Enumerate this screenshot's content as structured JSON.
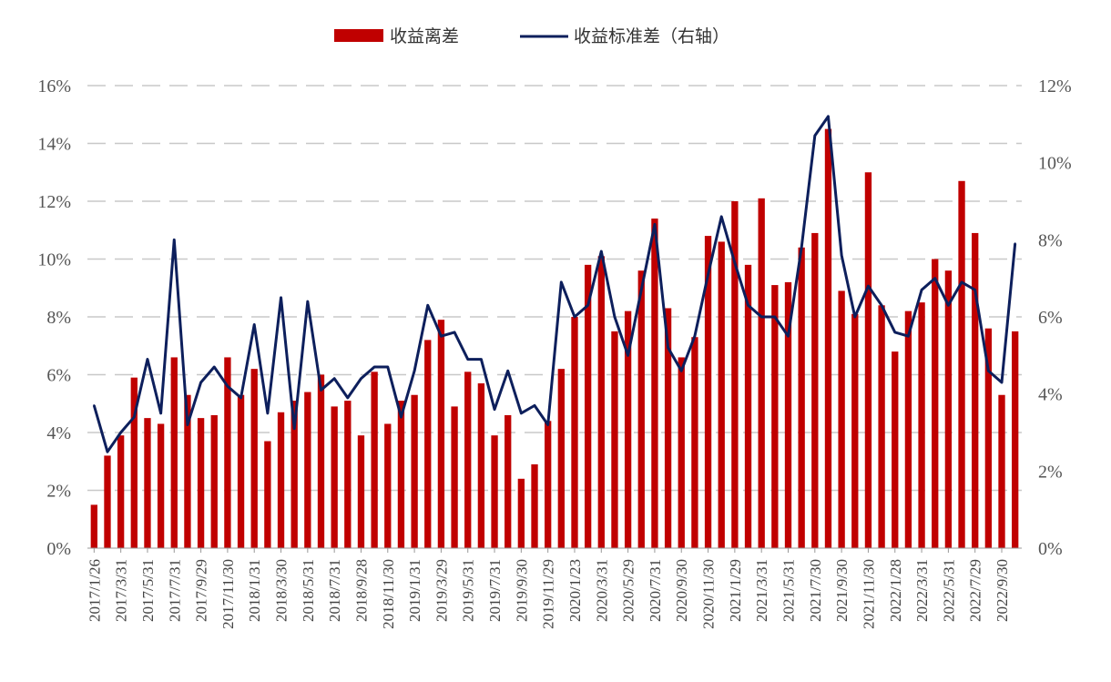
{
  "colors": {
    "bar": "#C00000",
    "line": "#0D1F5C",
    "grid": "#C8C8C8",
    "text": "#555555"
  },
  "chart_data": {
    "type": "bar+line",
    "legend": {
      "position": "top-center",
      "bar_label": "收益离差",
      "line_label": "收益标准差（右轴）"
    },
    "grid": true,
    "y_left": {
      "range": [
        0,
        16
      ],
      "ticks": [
        "0%",
        "2%",
        "4%",
        "6%",
        "8%",
        "10%",
        "12%",
        "14%",
        "16%"
      ]
    },
    "y_right": {
      "range": [
        0,
        12
      ],
      "ticks": [
        "0%",
        "2%",
        "4%",
        "6%",
        "8%",
        "10%",
        "12%"
      ]
    },
    "x_tick_labels": [
      "2017/1/26",
      "2017/3/31",
      "2017/5/31",
      "2017/7/31",
      "2017/9/29",
      "2017/11/30",
      "2018/1/31",
      "2018/3/30",
      "2018/5/31",
      "2018/7/31",
      "2018/9/28",
      "2018/11/30",
      "2019/1/31",
      "2019/3/29",
      "2019/5/31",
      "2019/7/31",
      "2019/9/30",
      "2019/11/29",
      "2020/1/23",
      "2020/3/31",
      "2020/5/29",
      "2020/7/31",
      "2020/9/30",
      "2020/11/30",
      "2021/1/29",
      "2021/3/31",
      "2021/5/31",
      "2021/7/30",
      "2021/9/30",
      "2021/11/30",
      "2022/1/28",
      "2022/3/31",
      "2022/5/31",
      "2022/7/29",
      "2022/9/30"
    ],
    "series": [
      {
        "name": "收益离差",
        "axis": "left",
        "type": "bar",
        "values": [
          1.5,
          3.2,
          3.9,
          5.9,
          4.5,
          4.3,
          6.6,
          5.3,
          4.5,
          4.6,
          6.6,
          5.3,
          6.2,
          3.7,
          4.7,
          5.1,
          5.4,
          6.0,
          4.9,
          5.1,
          3.9,
          6.1,
          4.3,
          5.1,
          5.3,
          7.2,
          7.9,
          4.9,
          6.1,
          5.7,
          3.9,
          4.6,
          2.4,
          2.9,
          4.4,
          6.2,
          8.0,
          9.8,
          10.1,
          7.5,
          8.2,
          9.6,
          11.4,
          8.3,
          6.6,
          7.3,
          10.8,
          10.6,
          12.0,
          9.8,
          12.1,
          9.1,
          9.2,
          10.4,
          10.9,
          14.5,
          8.9,
          8.1,
          13.0,
          8.4,
          6.8,
          8.2,
          8.5,
          10.0,
          9.6,
          12.7,
          10.9,
          7.6,
          5.3,
          7.5
        ]
      },
      {
        "name": "收益标准差（右轴）",
        "axis": "right",
        "type": "line",
        "values": [
          3.7,
          2.5,
          3.0,
          3.4,
          4.9,
          3.5,
          8.0,
          3.2,
          4.3,
          4.7,
          4.2,
          3.9,
          5.8,
          3.5,
          6.5,
          3.1,
          6.4,
          4.1,
          4.4,
          3.9,
          4.4,
          4.7,
          4.7,
          3.4,
          4.6,
          6.3,
          5.5,
          5.6,
          4.9,
          4.9,
          3.6,
          4.6,
          3.5,
          3.7,
          3.2,
          6.9,
          6.0,
          6.3,
          7.7,
          6.0,
          5.0,
          6.7,
          8.4,
          5.2,
          4.6,
          5.5,
          7.1,
          8.6,
          7.4,
          6.3,
          6.0,
          6.0,
          5.5,
          7.8,
          10.7,
          11.2,
          7.6,
          6.0,
          6.8,
          6.3,
          5.6,
          5.5,
          6.7,
          7.0,
          6.3,
          6.9,
          6.7,
          4.6,
          4.3,
          7.9
        ]
      }
    ]
  }
}
